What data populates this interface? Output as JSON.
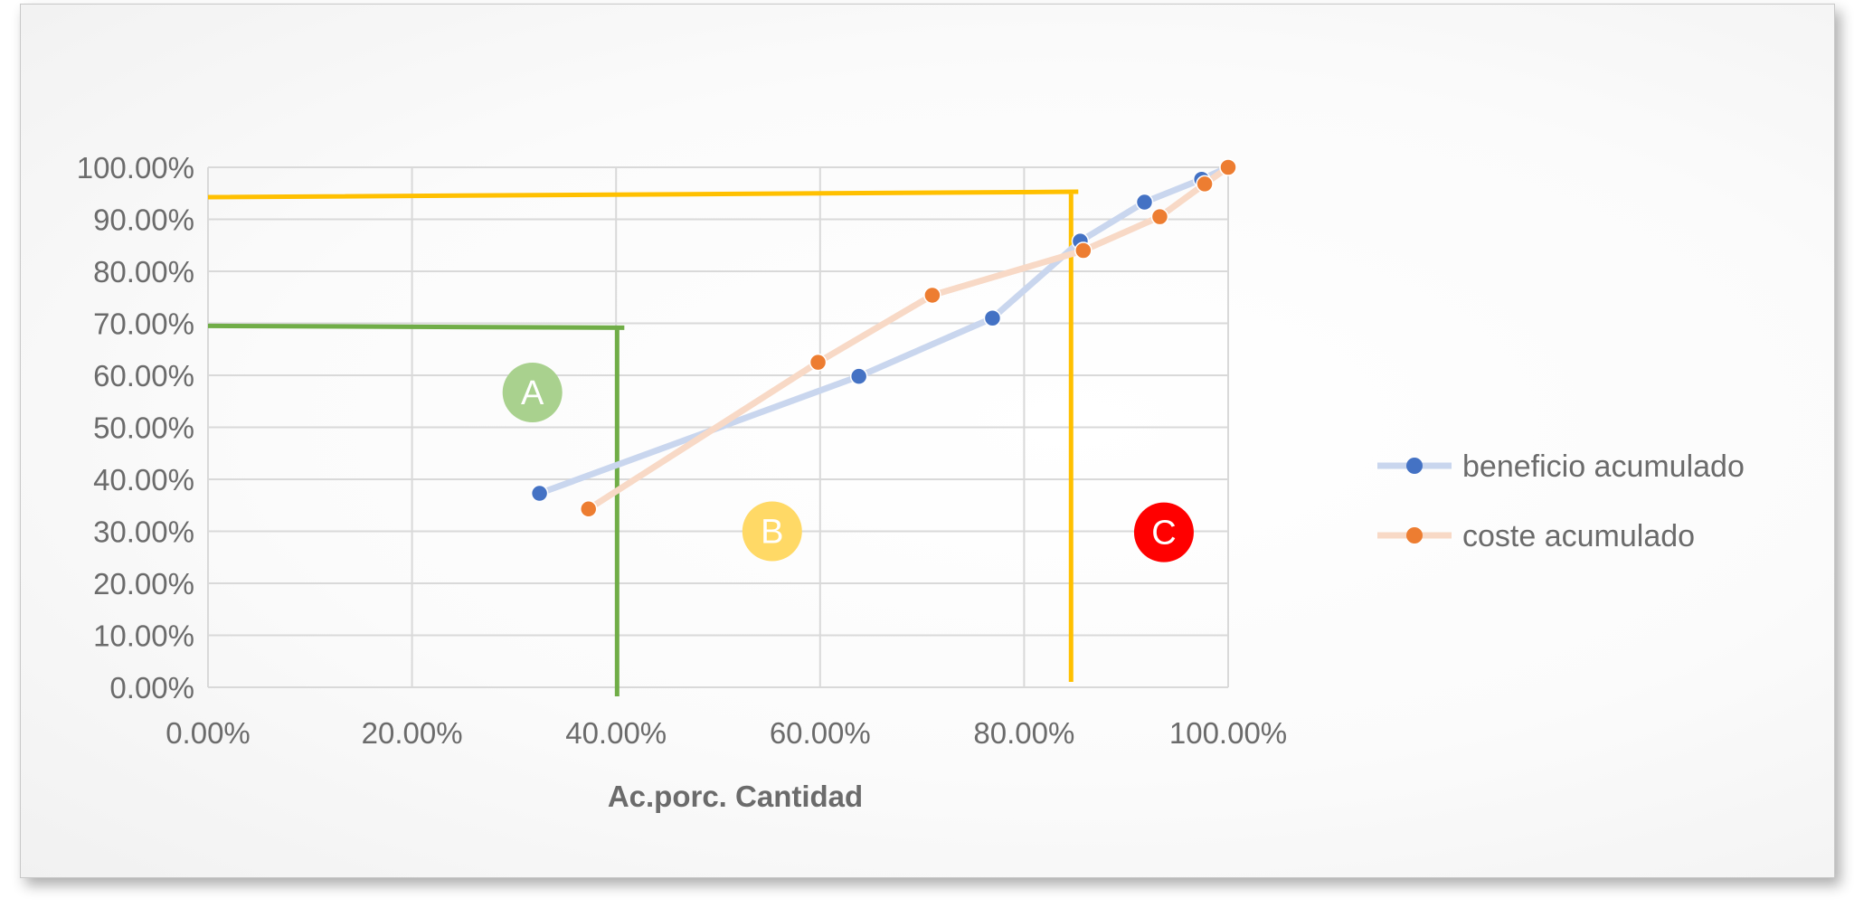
{
  "chart_data": {
    "type": "line",
    "xlabel": "Ac.porc. Cantidad",
    "ylabel": "",
    "xlim": [
      0,
      100
    ],
    "ylim": [
      0,
      100
    ],
    "x_ticks": [
      "0.00%",
      "20.00%",
      "40.00%",
      "60.00%",
      "80.00%",
      "100.00%"
    ],
    "y_ticks": [
      "0.00%",
      "10.00%",
      "20.00%",
      "30.00%",
      "40.00%",
      "50.00%",
      "60.00%",
      "70.00%",
      "80.00%",
      "90.00%",
      "100.00%"
    ],
    "grid": true,
    "legend_position": "right",
    "series": [
      {
        "name": "beneficio acumulado",
        "marker_color": "#4472c4",
        "line_color": "#c9d6ee",
        "points": [
          [
            32.5,
            37.3
          ],
          [
            63.8,
            59.8
          ],
          [
            76.9,
            71.0
          ],
          [
            85.5,
            85.8
          ],
          [
            91.8,
            93.3
          ],
          [
            97.4,
            97.7
          ],
          [
            100,
            100
          ]
        ]
      },
      {
        "name": "coste acumulado",
        "marker_color": "#ed7d31",
        "line_color": "#f8d9c6",
        "points": [
          [
            37.3,
            34.3
          ],
          [
            59.8,
            62.5
          ],
          [
            71.0,
            75.4
          ],
          [
            85.8,
            84.0
          ],
          [
            93.3,
            90.5
          ],
          [
            97.7,
            96.8
          ],
          [
            100,
            100
          ]
        ]
      }
    ],
    "threshold_lines": [
      {
        "color": "#70ad47",
        "x": 40.1,
        "y": 69.5
      },
      {
        "color": "#ffc000",
        "x": 84.6,
        "y": 95.3
      }
    ],
    "zones": [
      {
        "label": "A",
        "color": "#a9d18e",
        "x": 31.8,
        "y": 56.7
      },
      {
        "label": "B",
        "color": "#ffd966",
        "x": 55.3,
        "y": 30.0
      },
      {
        "label": "C",
        "color": "#ff0000",
        "x": 93.7,
        "y": 29.8
      }
    ]
  }
}
